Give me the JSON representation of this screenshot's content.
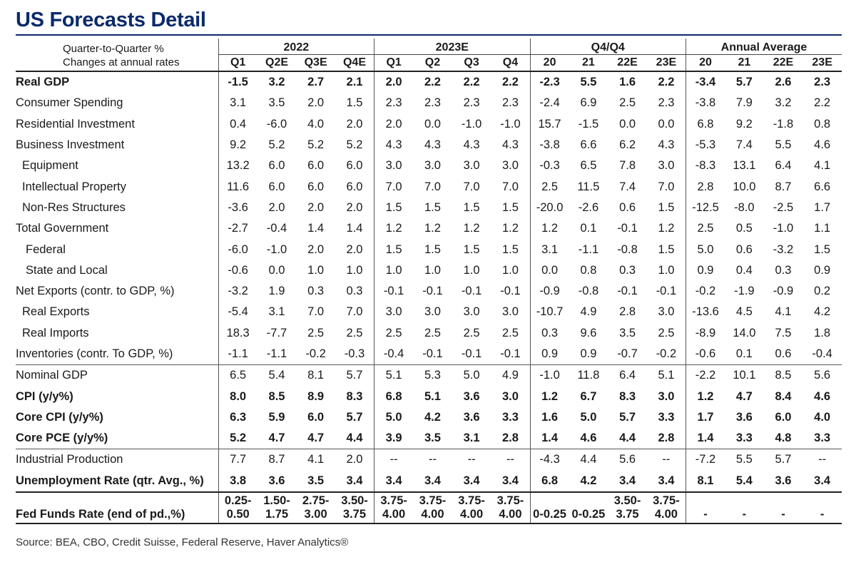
{
  "title": "US Forecasts Detail",
  "header": {
    "stub_line1": "Quarter-to-Quarter %",
    "stub_line2": "Changes at annual rates",
    "groups": [
      "2022",
      "2023E",
      "Q4/Q4",
      "Annual Average"
    ],
    "columns": [
      "Q1",
      "Q2E",
      "Q3E",
      "Q4E",
      "Q1",
      "Q2",
      "Q3",
      "Q4",
      "20",
      "21",
      "22E",
      "23E",
      "20",
      "21",
      "22E",
      "23E"
    ]
  },
  "rows": [
    {
      "label": "Real GDP",
      "values": [
        "-1.5",
        "3.2",
        "2.7",
        "2.1",
        "2.0",
        "2.2",
        "2.2",
        "2.2",
        "-2.3",
        "5.5",
        "1.6",
        "2.2",
        "-3.4",
        "5.7",
        "2.6",
        "2.3"
      ]
    },
    {
      "label": "Consumer Spending",
      "values": [
        "3.1",
        "3.5",
        "2.0",
        "1.5",
        "2.3",
        "2.3",
        "2.3",
        "2.3",
        "-2.4",
        "6.9",
        "2.5",
        "2.3",
        "-3.8",
        "7.9",
        "3.2",
        "2.2"
      ]
    },
    {
      "label": "Residential Investment",
      "values": [
        "0.4",
        "-6.0",
        "4.0",
        "2.0",
        "2.0",
        "0.0",
        "-1.0",
        "-1.0",
        "15.7",
        "-1.5",
        "0.0",
        "0.0",
        "6.8",
        "9.2",
        "-1.8",
        "0.8"
      ]
    },
    {
      "label": "Business Investment",
      "values": [
        "9.2",
        "5.2",
        "5.2",
        "5.2",
        "4.3",
        "4.3",
        "4.3",
        "4.3",
        "-3.8",
        "6.6",
        "6.2",
        "4.3",
        "-5.3",
        "7.4",
        "5.5",
        "4.6"
      ]
    },
    {
      "label": "Equipment",
      "values": [
        "13.2",
        "6.0",
        "6.0",
        "6.0",
        "3.0",
        "3.0",
        "3.0",
        "3.0",
        "-0.3",
        "6.5",
        "7.8",
        "3.0",
        "-8.3",
        "13.1",
        "6.4",
        "4.1"
      ]
    },
    {
      "label": "Intellectual Property",
      "values": [
        "11.6",
        "6.0",
        "6.0",
        "6.0",
        "7.0",
        "7.0",
        "7.0",
        "7.0",
        "2.5",
        "11.5",
        "7.4",
        "7.0",
        "2.8",
        "10.0",
        "8.7",
        "6.6"
      ]
    },
    {
      "label": "Non-Res Structures",
      "values": [
        "-3.6",
        "2.0",
        "2.0",
        "2.0",
        "1.5",
        "1.5",
        "1.5",
        "1.5",
        "-20.0",
        "-2.6",
        "0.6",
        "1.5",
        "-12.5",
        "-8.0",
        "-2.5",
        "1.7"
      ]
    },
    {
      "label": "Total Government",
      "values": [
        "-2.7",
        "-0.4",
        "1.4",
        "1.4",
        "1.2",
        "1.2",
        "1.2",
        "1.2",
        "1.2",
        "0.1",
        "-0.1",
        "1.2",
        "2.5",
        "0.5",
        "-1.0",
        "1.1"
      ]
    },
    {
      "label": "Federal",
      "values": [
        "-6.0",
        "-1.0",
        "2.0",
        "2.0",
        "1.5",
        "1.5",
        "1.5",
        "1.5",
        "3.1",
        "-1.1",
        "-0.8",
        "1.5",
        "5.0",
        "0.6",
        "-3.2",
        "1.5"
      ]
    },
    {
      "label": "State and Local",
      "values": [
        "-0.6",
        "0.0",
        "1.0",
        "1.0",
        "1.0",
        "1.0",
        "1.0",
        "1.0",
        "0.0",
        "0.8",
        "0.3",
        "1.0",
        "0.9",
        "0.4",
        "0.3",
        "0.9"
      ]
    },
    {
      "label": "Net Exports (contr. to GDP, %)",
      "values": [
        "-3.2",
        "1.9",
        "0.3",
        "0.3",
        "-0.1",
        "-0.1",
        "-0.1",
        "-0.1",
        "-0.9",
        "-0.8",
        "-0.1",
        "-0.1",
        "-0.2",
        "-1.9",
        "-0.9",
        "0.2"
      ]
    },
    {
      "label": "Real Exports",
      "values": [
        "-5.4",
        "3.1",
        "7.0",
        "7.0",
        "3.0",
        "3.0",
        "3.0",
        "3.0",
        "-10.7",
        "4.9",
        "2.8",
        "3.0",
        "-13.6",
        "4.5",
        "4.1",
        "4.2"
      ]
    },
    {
      "label": "Real Imports",
      "values": [
        "18.3",
        "-7.7",
        "2.5",
        "2.5",
        "2.5",
        "2.5",
        "2.5",
        "2.5",
        "0.3",
        "9.6",
        "3.5",
        "2.5",
        "-8.9",
        "14.0",
        "7.5",
        "1.8"
      ]
    },
    {
      "label": "Inventories (contr. To GDP, %)",
      "values": [
        "-1.1",
        "-1.1",
        "-0.2",
        "-0.3",
        "-0.4",
        "-0.1",
        "-0.1",
        "-0.1",
        "0.9",
        "0.9",
        "-0.7",
        "-0.2",
        "-0.6",
        "0.1",
        "0.6",
        "-0.4"
      ]
    },
    {
      "label": "Nominal GDP",
      "values": [
        "6.5",
        "5.4",
        "8.1",
        "5.7",
        "5.1",
        "5.3",
        "5.0",
        "4.9",
        "-1.0",
        "11.8",
        "6.4",
        "5.1",
        "-2.2",
        "10.1",
        "8.5",
        "5.6"
      ]
    },
    {
      "label": "CPI (y/y%)",
      "values": [
        "8.0",
        "8.5",
        "8.9",
        "8.3",
        "6.8",
        "5.1",
        "3.6",
        "3.0",
        "1.2",
        "6.7",
        "8.3",
        "3.0",
        "1.2",
        "4.7",
        "8.4",
        "4.6"
      ]
    },
    {
      "label": "Core CPI (y/y%)",
      "values": [
        "6.3",
        "5.9",
        "6.0",
        "5.7",
        "5.0",
        "4.2",
        "3.6",
        "3.3",
        "1.6",
        "5.0",
        "5.7",
        "3.3",
        "1.7",
        "3.6",
        "6.0",
        "4.0"
      ]
    },
    {
      "label": "Core PCE (y/y%)",
      "values": [
        "5.2",
        "4.7",
        "4.7",
        "4.4",
        "3.9",
        "3.5",
        "3.1",
        "2.8",
        "1.4",
        "4.6",
        "4.4",
        "2.8",
        "1.4",
        "3.3",
        "4.8",
        "3.3"
      ]
    },
    {
      "label": "Industrial Production",
      "values": [
        "7.7",
        "8.7",
        "4.1",
        "2.0",
        "--",
        "--",
        "--",
        "--",
        "-4.3",
        "4.4",
        "5.6",
        "--",
        "-7.2",
        "5.5",
        "5.7",
        "--"
      ]
    },
    {
      "label": "Unemployment Rate (qtr. Avg., %)",
      "values": [
        "3.8",
        "3.6",
        "3.5",
        "3.4",
        "3.4",
        "3.4",
        "3.4",
        "3.4",
        "6.8",
        "4.2",
        "3.4",
        "3.4",
        "8.1",
        "5.4",
        "3.6",
        "3.4"
      ]
    }
  ],
  "fed_funds": {
    "label": "Fed Funds Rate (end of pd.,%)",
    "top": [
      "0.25-",
      "1.50-",
      "2.75-",
      "3.50-",
      "3.75-",
      "3.75-",
      "3.75-",
      "3.75-",
      "",
      "",
      "3.50-",
      "3.75-",
      "",
      "",
      "",
      ""
    ],
    "bottom": [
      "0.50",
      "1.75",
      "3.00",
      "3.75",
      "4.00",
      "4.00",
      "4.00",
      "4.00",
      "0-0.25",
      "0-0.25",
      "3.75",
      "4.00",
      "-",
      "-",
      "-",
      "-"
    ]
  },
  "source": "Source: BEA, CBO, Credit Suisse, Federal Reserve, Haver Analytics®"
}
